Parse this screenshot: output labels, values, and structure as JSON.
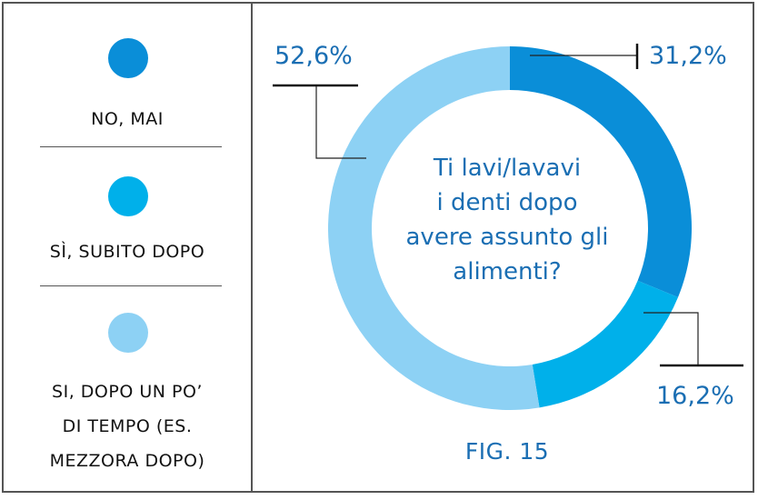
{
  "legend": {
    "items": [
      {
        "label_lines": [
          "NO, MAI"
        ],
        "color": "#0a8ed8"
      },
      {
        "label_lines": [
          "SÌ, SUBITO DOPO"
        ],
        "color": "#00b0ea"
      },
      {
        "label_lines": [
          "SI, DOPO UN PO’",
          "DI TEMPO (ES.",
          "MEZZORA DOPO)"
        ],
        "color": "#8dd1f4"
      }
    ]
  },
  "question_lines": [
    "Ti lavi/lavavi",
    "i denti dopo",
    "avere assunto gli",
    "alimenti?"
  ],
  "figure_label": "FIG. 15",
  "chart_data": {
    "type": "pie",
    "donut": true,
    "categories": [
      "NO, MAI",
      "SÌ, SUBITO DOPO",
      "SI, DOPO UN PO’ DI TEMPO (ES. MEZZORA DOPO)"
    ],
    "values": [
      31.2,
      16.2,
      52.6
    ],
    "labels": [
      "31,2%",
      "16,2%",
      "52,6%"
    ],
    "colors": [
      "#0a8ed8",
      "#00b0ea",
      "#8dd1f4"
    ],
    "legend": "left"
  }
}
